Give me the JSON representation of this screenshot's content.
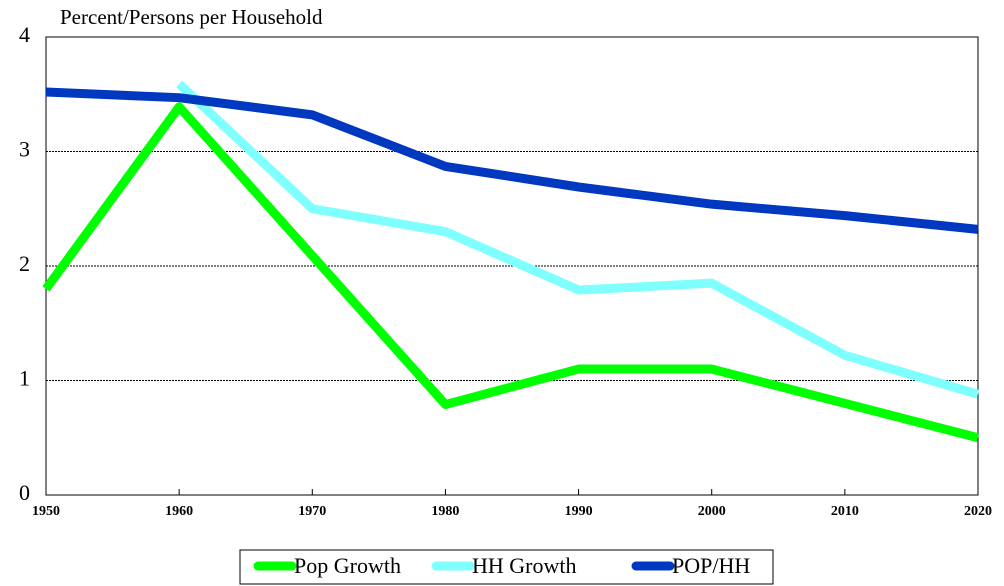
{
  "chart_data": {
    "type": "line",
    "title": "Percent/Persons per Household",
    "x": [
      1950,
      1960,
      1970,
      1980,
      1990,
      2000,
      2010,
      2020
    ],
    "xlim": [
      1950,
      2020
    ],
    "xticks": [
      1950,
      1960,
      1970,
      1980,
      1990,
      2000,
      2010,
      2020
    ],
    "ylim": [
      0,
      4
    ],
    "yticks": [
      0,
      1,
      2,
      3,
      4
    ],
    "grid": true,
    "legend": "bottom",
    "series": [
      {
        "name": "Pop Growth",
        "color": "#00ff00",
        "values": [
          1.8,
          3.39,
          2.09,
          0.79,
          1.1,
          1.1,
          0.8,
          0.5
        ]
      },
      {
        "name": "HH Growth",
        "color": "#80ffff",
        "values": [
          null,
          3.59,
          2.5,
          2.3,
          1.79,
          1.85,
          1.22,
          0.88
        ]
      },
      {
        "name": "POP/HH",
        "color": "#0038c0",
        "values": [
          3.52,
          3.47,
          3.32,
          2.87,
          2.69,
          2.54,
          2.44,
          2.32
        ]
      }
    ]
  }
}
